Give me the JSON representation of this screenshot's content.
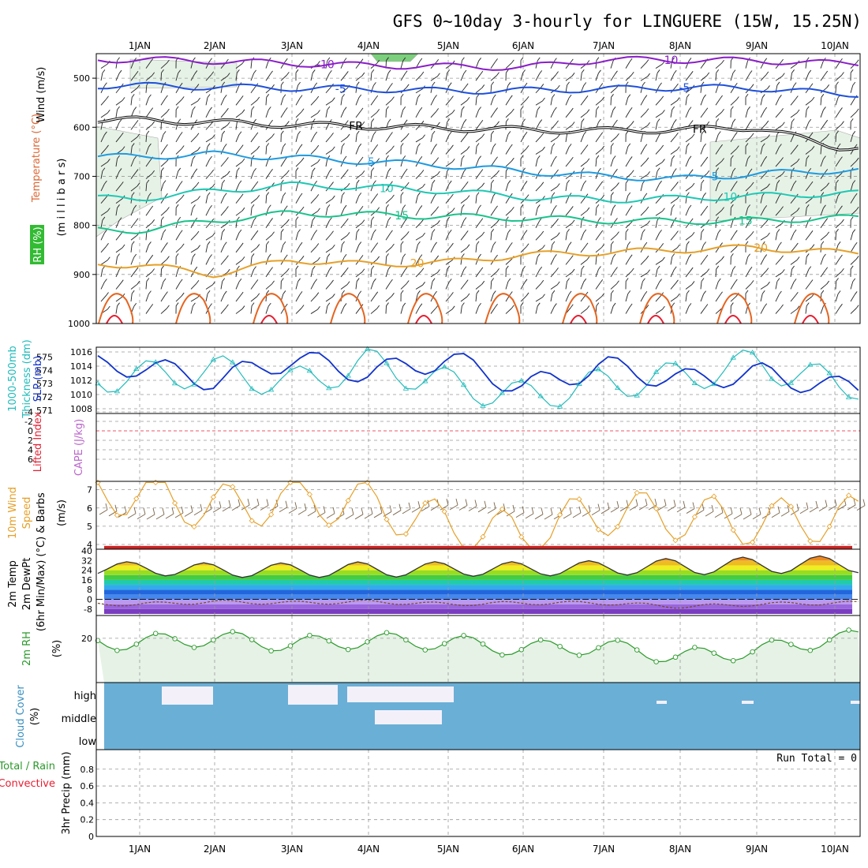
{
  "title": "GFS 0~10day 3-hourly for LINGUERE (15W, 15.25N)",
  "dates": [
    "1JAN",
    "2JAN",
    "3JAN",
    "4JAN",
    "5JAN",
    "6JAN",
    "7JAN",
    "8JAN",
    "9JAN",
    "10JAN"
  ],
  "colors": {
    "purple": "#8a1ec8",
    "blue": "#1e50dc",
    "lightblue": "#1e9be0",
    "teal": "#1ec8b4",
    "green": "#19c38c",
    "orange": "#e6a028",
    "darkorange": "#e6641e",
    "red": "#e61e32",
    "rh_fill": "#e6f2e6",
    "cloud": "#6aafd6",
    "grid": "#999999"
  },
  "chart_data": [
    {
      "type": "contour",
      "panel": "upper-air",
      "ylabels": [
        "Wind (m/s)",
        "Temperature (°C)",
        "(m i l l i b a r s)",
        "RH (%)"
      ],
      "ylim": [
        1000,
        450
      ],
      "yticks": [
        500,
        600,
        700,
        800,
        900,
        1000
      ],
      "x": [
        "1JAN",
        "2JAN",
        "3JAN",
        "4JAN",
        "5JAN",
        "6JAN",
        "7JAN",
        "8JAN",
        "9JAN",
        "10JAN"
      ],
      "isotherms": [
        {
          "name": "-10",
          "label": "-10",
          "values": [
            462,
            465,
            470,
            474,
            476,
            478,
            462,
            463,
            464,
            470
          ]
        },
        {
          "name": "-5",
          "label": "-5",
          "values": [
            515,
            518,
            520,
            522,
            526,
            525,
            522,
            519,
            520,
            532
          ]
        },
        {
          "name": "FR",
          "label": "FR",
          "values": [
            585,
            590,
            595,
            598,
            602,
            605,
            607,
            605,
            600,
            640
          ]
        },
        {
          "name": "5",
          "label": "5",
          "values": [
            660,
            655,
            662,
            670,
            678,
            690,
            700,
            705,
            695,
            688
          ]
        },
        {
          "name": "10",
          "label": "10",
          "values": [
            745,
            730,
            718,
            722,
            730,
            742,
            748,
            745,
            740,
            735
          ]
        },
        {
          "name": "15",
          "label": "15",
          "values": [
            810,
            790,
            775,
            778,
            782,
            785,
            790,
            792,
            790,
            785
          ]
        },
        {
          "name": "20",
          "label": "20",
          "values": [
            880,
            900,
            870,
            880,
            875,
            860,
            855,
            850,
            845,
            855
          ]
        }
      ]
    },
    {
      "type": "line",
      "panel": "thickness-slp",
      "ylabels": [
        "1000-500mb",
        "Thickness (dm)",
        "SLP (mb)"
      ],
      "yticks_left": [
        571,
        572,
        573,
        574,
        575
      ],
      "yticks_right": [
        1008,
        1010,
        1012,
        1014,
        1016
      ],
      "x": [
        "1JAN",
        "2JAN",
        "3JAN",
        "4JAN",
        "5JAN",
        "6JAN",
        "7JAN",
        "8JAN",
        "9JAN",
        "10JAN"
      ],
      "series": [
        {
          "name": "SLP (mb)",
          "values": [
            1014,
            1012,
            1015,
            1013,
            1015,
            1011,
            1014,
            1012,
            1013,
            1011
          ]
        },
        {
          "name": "1000-500mb Thickness (dm)",
          "values": [
            573.5,
            574,
            573,
            574.5,
            573,
            572,
            573,
            573.5,
            574.5,
            573
          ]
        }
      ]
    },
    {
      "type": "line",
      "panel": "cape-li",
      "ylabels": [
        "Lifted Index",
        "CAPE (J/kg)"
      ],
      "yticks": [
        -4,
        -2,
        0,
        2,
        4,
        6
      ],
      "x": [
        "1JAN",
        "2JAN",
        "3JAN",
        "4JAN",
        "5JAN",
        "6JAN",
        "7JAN",
        "8JAN",
        "9JAN",
        "10JAN"
      ],
      "series": [
        {
          "name": "Lifted Index",
          "values": [
            0,
            0,
            0,
            0,
            0,
            0,
            0,
            0,
            0,
            0
          ]
        }
      ]
    },
    {
      "type": "line",
      "panel": "wind10m",
      "ylabels": [
        "10m Wind",
        "Speed",
        "& Barbs",
        "(m/s)"
      ],
      "yticks": [
        4,
        5,
        6,
        7
      ],
      "x": [
        "1JAN",
        "2JAN",
        "3JAN",
        "4JAN",
        "5JAN",
        "6JAN",
        "7JAN",
        "8JAN",
        "9JAN",
        "10JAN"
      ],
      "series": [
        {
          "name": "10m Wind Speed (m/s)",
          "values": [
            6.8,
            6.0,
            6.5,
            6.2,
            5.0,
            4.5,
            5.8,
            5.5,
            5.2,
            5.4
          ]
        }
      ]
    },
    {
      "type": "area",
      "panel": "temp2m",
      "ylabels": [
        "2m Temp",
        "2m DewPt",
        "(6hr Min/Max) (°C)"
      ],
      "yticks": [
        -8,
        0,
        8,
        16,
        24,
        32,
        40
      ],
      "x": [
        "1JAN",
        "2JAN",
        "3JAN",
        "4JAN",
        "5JAN",
        "6JAN",
        "7JAN",
        "8JAN",
        "9JAN",
        "10JAN"
      ],
      "series": [
        {
          "name": "2m Temp max",
          "values": [
            31,
            30,
            30,
            31,
            31,
            31,
            32,
            34,
            35,
            36
          ]
        },
        {
          "name": "2m Temp min",
          "values": [
            20,
            18,
            18,
            18,
            19,
            19,
            20,
            20,
            21,
            22
          ]
        },
        {
          "name": "2m DewPt",
          "values": [
            -4,
            -2,
            -3,
            -2,
            -4,
            -3,
            -3,
            -6,
            -4,
            -3
          ]
        }
      ]
    },
    {
      "type": "line",
      "panel": "rh2m",
      "ylabels": [
        "2m RH",
        "(%)"
      ],
      "yticks": [
        20
      ],
      "x": [
        "1JAN",
        "2JAN",
        "3JAN",
        "4JAN",
        "5JAN",
        "6JAN",
        "7JAN",
        "8JAN",
        "9JAN",
        "10JAN"
      ],
      "series": [
        {
          "name": "2m RH (%)",
          "values": [
            18,
            20,
            17,
            19,
            18,
            15,
            16,
            11,
            14,
            20
          ]
        }
      ]
    },
    {
      "type": "heatmap",
      "panel": "cloud",
      "ylabels": [
        "Cloud Cover",
        "(%)"
      ],
      "rows": [
        "high",
        "middle",
        "low"
      ],
      "x": [
        "1JAN",
        "2JAN",
        "3JAN",
        "4JAN",
        "5JAN",
        "6JAN",
        "7JAN",
        "8JAN",
        "9JAN",
        "10JAN"
      ]
    },
    {
      "type": "bar",
      "panel": "precip",
      "ylabels": [
        "Total / Rain",
        "Convective",
        "3hr Precip (mm)"
      ],
      "yticks": [
        0,
        0.2,
        0.4,
        0.6,
        0.8
      ],
      "ylim": [
        0,
        1
      ],
      "x": [
        "1JAN",
        "2JAN",
        "3JAN",
        "4JAN",
        "5JAN",
        "6JAN",
        "7JAN",
        "8JAN",
        "9JAN",
        "10JAN"
      ],
      "values": [
        0,
        0,
        0,
        0,
        0,
        0,
        0,
        0,
        0,
        0
      ],
      "run_total": "Run Total = 0"
    }
  ]
}
